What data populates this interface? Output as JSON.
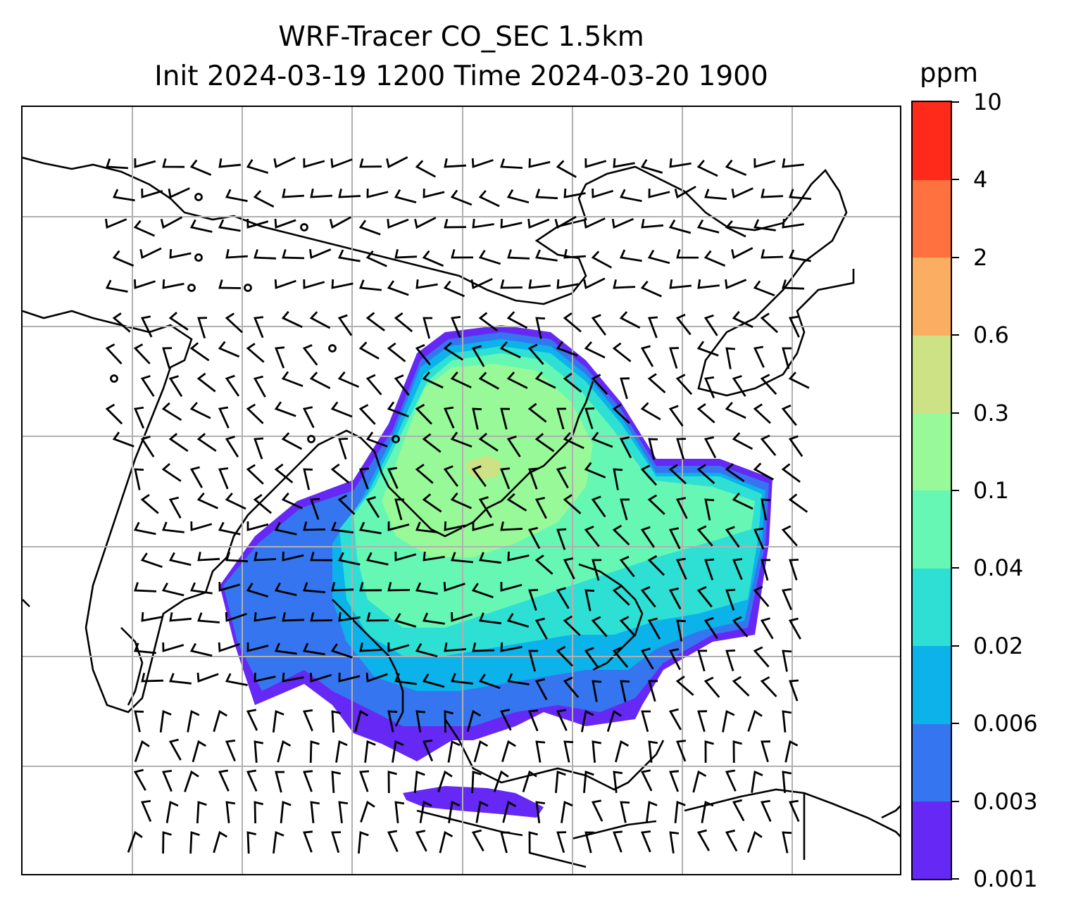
{
  "title": {
    "line1": "WRF-Tracer CO_SEC 1.5km",
    "line2": "Init 2024-03-19 1200 Time 2024-03-20 1900"
  },
  "colorbar": {
    "unit": "ppm",
    "levels": [
      "0.001",
      "0.003",
      "0.006",
      "0.02",
      "0.04",
      "0.1",
      "0.3",
      "0.6",
      "2",
      "4",
      "10"
    ],
    "colors": [
      "#6628f5",
      "#3576f0",
      "#0cb2ea",
      "#2ee0d4",
      "#66f7b4",
      "#98f998",
      "#cde185",
      "#fbae62",
      "#ff7240",
      "#ff2a1a"
    ]
  },
  "map": {
    "gridlines": true,
    "grid_color": "#b0b0b0",
    "coastline_color": "#000000",
    "wind_barbs": true
  }
}
